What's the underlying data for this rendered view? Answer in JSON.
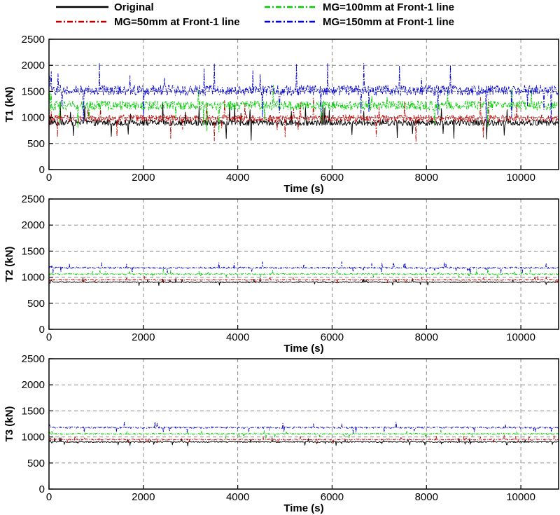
{
  "legend": [
    {
      "label": "Original",
      "color": "#000000",
      "dash": "solid"
    },
    {
      "label": "MG=50mm at Front-1 line",
      "color": "#c00000",
      "dash": "dashdot"
    },
    {
      "label": "MG=100mm at Front-1 line",
      "color": "#00cc00",
      "dash": "dashdot"
    },
    {
      "label": "MG=150mm at Front-1 line",
      "color": "#0000cc",
      "dash": "dashdot"
    }
  ],
  "chart_data": [
    {
      "type": "line",
      "ylabel": "T1 (kN)",
      "xlabel": "Time (s)",
      "xlim": [
        0,
        10800
      ],
      "ylim": [
        0,
        2500
      ],
      "xticks": [
        0,
        2000,
        4000,
        6000,
        8000,
        10000
      ],
      "yticks": [
        0,
        500,
        1000,
        1500,
        2000,
        2500
      ],
      "grid": true,
      "series": [
        {
          "name": "Original",
          "mean": 900,
          "noise": 60,
          "spike": 300
        },
        {
          "name": "MG=50mm at Front-1 line",
          "mean": 980,
          "noise": 70,
          "spike": 350
        },
        {
          "name": "MG=100mm at Front-1 line",
          "mean": 1230,
          "noise": 90,
          "spike": 400
        },
        {
          "name": "MG=150mm at Front-1 line",
          "mean": 1520,
          "noise": 100,
          "spike": 500
        }
      ]
    },
    {
      "type": "line",
      "ylabel": "T2 (kN)",
      "xlabel": "Time (s)",
      "xlim": [
        0,
        10800
      ],
      "ylim": [
        0,
        2500
      ],
      "xticks": [
        0,
        2000,
        4000,
        6000,
        8000,
        10000
      ],
      "yticks": [
        0,
        500,
        1000,
        1500,
        2000,
        2500
      ],
      "grid": true,
      "series": [
        {
          "name": "Original",
          "mean": 905,
          "noise": 12,
          "spike": 60
        },
        {
          "name": "MG=50mm at Front-1 line",
          "mean": 950,
          "noise": 12,
          "spike": 60
        },
        {
          "name": "MG=100mm at Front-1 line",
          "mean": 1060,
          "noise": 14,
          "spike": 70
        },
        {
          "name": "MG=150mm at Front-1 line",
          "mean": 1180,
          "noise": 16,
          "spike": 90
        }
      ]
    },
    {
      "type": "line",
      "ylabel": "T3 (kN)",
      "xlabel": "Time (s)",
      "xlim": [
        0,
        10800
      ],
      "ylim": [
        0,
        2500
      ],
      "xticks": [
        0,
        2000,
        4000,
        6000,
        8000,
        10000
      ],
      "yticks": [
        0,
        500,
        1000,
        1500,
        2000,
        2500
      ],
      "grid": true,
      "series": [
        {
          "name": "Original",
          "mean": 905,
          "noise": 12,
          "spike": 60
        },
        {
          "name": "MG=50mm at Front-1 line",
          "mean": 950,
          "noise": 12,
          "spike": 60
        },
        {
          "name": "MG=100mm at Front-1 line",
          "mean": 1060,
          "noise": 14,
          "spike": 70
        },
        {
          "name": "MG=150mm at Front-1 line",
          "mean": 1180,
          "noise": 16,
          "spike": 90
        }
      ]
    }
  ]
}
